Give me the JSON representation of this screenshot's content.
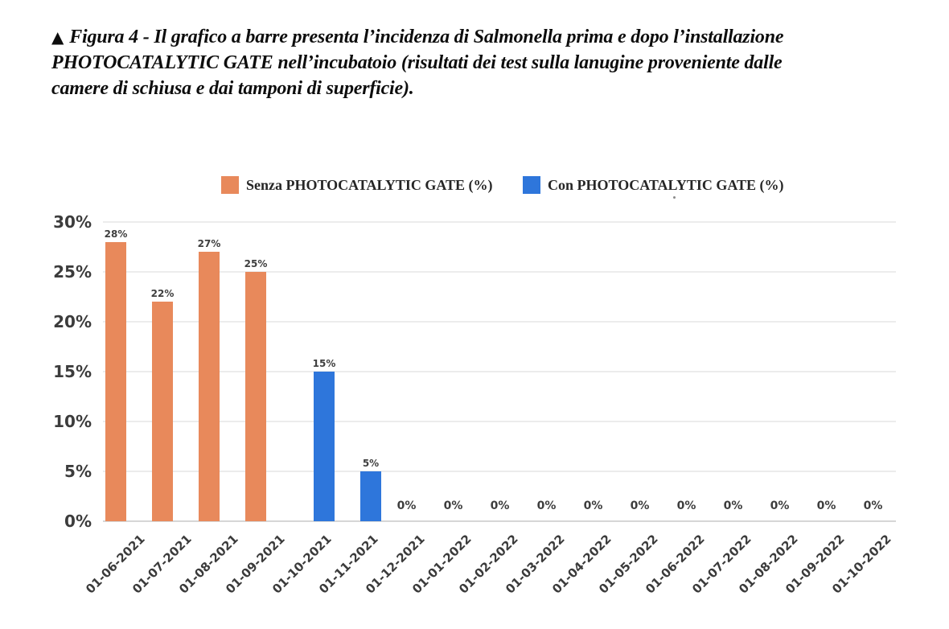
{
  "caption": {
    "marker": "▲",
    "lines": [
      "Figura 4 - Il grafico a barre presenta l’incidenza di Salmonella prima e dopo l’installazione",
      "PHOTOCATALYTIC GATE nell’incubatoio (risultati dei test sulla lanugine proveniente dalle",
      "camere di schiusa e dai tamponi di superficie)."
    ]
  },
  "chart_data": {
    "type": "bar",
    "title": "",
    "xlabel": "",
    "ylabel": "",
    "unit": "%",
    "categories": [
      "01-06-2021",
      "01-07-2021",
      "01-08-2021",
      "01-09-2021",
      "01-10-2021",
      "01-11-2021",
      "01-12-2021",
      "01-01-2022",
      "01-02-2022",
      "01-03-2022",
      "01-04-2022",
      "01-05-2022",
      "01-06-2022",
      "01-07-2022",
      "01-08-2022",
      "01-09-2022",
      "01-10-2022"
    ],
    "series": [
      {
        "name": "Senza PHOTOCATALYTIC GATE (%)",
        "color": "#E8895B",
        "values": [
          28,
          22,
          27,
          25,
          0,
          0,
          0,
          0,
          0,
          0,
          0,
          0,
          0,
          0,
          0,
          0,
          0
        ]
      },
      {
        "name": "Con PHOTOCATALYTIC GATE (%)",
        "color": "#2E76DB",
        "values": [
          0,
          0,
          0,
          0,
          15,
          5,
          0,
          0,
          0,
          0,
          0,
          0,
          0,
          0,
          0,
          0,
          0
        ]
      }
    ],
    "annotation_labels": [
      "28%",
      "22%",
      "27%",
      "25%",
      "15%",
      "5%",
      "0%",
      "0%",
      "0%",
      "0%",
      "0%",
      "0%",
      "0%",
      "0%",
      "0%",
      "0%",
      "0%"
    ],
    "y_tick_labels": [
      "0%",
      "5%",
      "10%",
      "15%",
      "20%",
      "25%",
      "30%"
    ],
    "ylim": [
      0,
      30
    ],
    "grid": true,
    "legend_position": "top",
    "x_tick_rotation_deg": 45
  }
}
